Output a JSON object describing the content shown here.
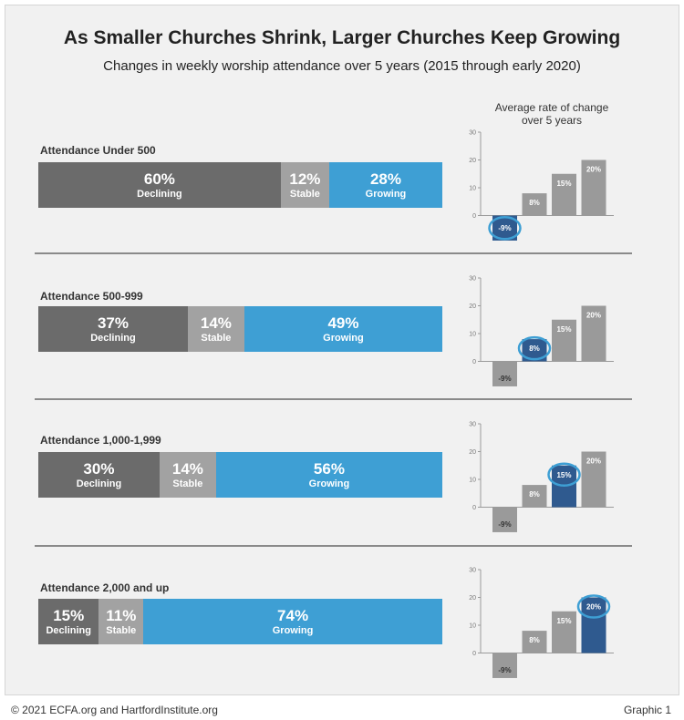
{
  "header": {
    "title": "As Smaller Churches Shrink, Larger Churches Keep Growing",
    "subtitle": "Changes in weekly worship attendance over 5 years (2015 through early 2020)",
    "right_title_line1": "Average rate of change",
    "right_title_line2": "over 5 years"
  },
  "footer": {
    "copyright": "© 2021 ECFA.org and HartfordInstitute.org",
    "graphic": "Graphic 1"
  },
  "colors": {
    "declining": "#6b6b6b",
    "stable": "#a2a2a2",
    "growing": "#3e9fd4",
    "mini_bar": "#9a9a9a",
    "mini_highlight": "#2f5a8f",
    "circle": "#3e9fd4"
  },
  "chart_data": [
    {
      "type": "bar",
      "stacked": true,
      "orientation": "horizontal",
      "title": "Attendance Under 500",
      "categories": [
        "Declining",
        "Stable",
        "Growing"
      ],
      "values": [
        60,
        12,
        28
      ],
      "value_labels": [
        "60%",
        "12%",
        "28%"
      ]
    },
    {
      "type": "bar",
      "stacked": true,
      "orientation": "horizontal",
      "title": "Attendance 500-999",
      "categories": [
        "Declining",
        "Stable",
        "Growing"
      ],
      "values": [
        37,
        14,
        49
      ],
      "value_labels": [
        "37%",
        "14%",
        "49%"
      ]
    },
    {
      "type": "bar",
      "stacked": true,
      "orientation": "horizontal",
      "title": "Attendance 1,000-1,999",
      "categories": [
        "Declining",
        "Stable",
        "Growing"
      ],
      "values": [
        30,
        14,
        56
      ],
      "value_labels": [
        "30%",
        "14%",
        "56%"
      ]
    },
    {
      "type": "bar",
      "stacked": true,
      "orientation": "horizontal",
      "title": "Attendance 2,000 and up",
      "categories": [
        "Declining",
        "Stable",
        "Growing"
      ],
      "values": [
        15,
        11,
        74
      ],
      "value_labels": [
        "15%",
        "11%",
        "74%"
      ]
    },
    {
      "type": "bar",
      "title": "Average rate of change over 5 years",
      "values": [
        -9,
        8,
        15,
        20
      ],
      "value_labels": [
        "-9%",
        "8%",
        "15%",
        "20%"
      ],
      "highlighted_index": 0,
      "ylim": [
        -10,
        30
      ],
      "yticks": [
        "0",
        "10",
        "20",
        "30"
      ]
    },
    {
      "type": "bar",
      "values": [
        -9,
        8,
        15,
        20
      ],
      "value_labels": [
        "-9%",
        "8%",
        "15%",
        "20%"
      ],
      "highlighted_index": 1,
      "ylim": [
        -10,
        30
      ],
      "yticks": [
        "0",
        "10",
        "20",
        "30"
      ]
    },
    {
      "type": "bar",
      "values": [
        -9,
        8,
        15,
        20
      ],
      "value_labels": [
        "-9%",
        "8%",
        "15%",
        "20%"
      ],
      "highlighted_index": 2,
      "ylim": [
        -10,
        30
      ],
      "yticks": [
        "0",
        "10",
        "20",
        "30"
      ]
    },
    {
      "type": "bar",
      "values": [
        -9,
        8,
        15,
        20
      ],
      "value_labels": [
        "-9%",
        "8%",
        "15%",
        "20%"
      ],
      "highlighted_index": 3,
      "ylim": [
        -10,
        30
      ],
      "yticks": [
        "0",
        "10",
        "20",
        "30"
      ]
    }
  ]
}
